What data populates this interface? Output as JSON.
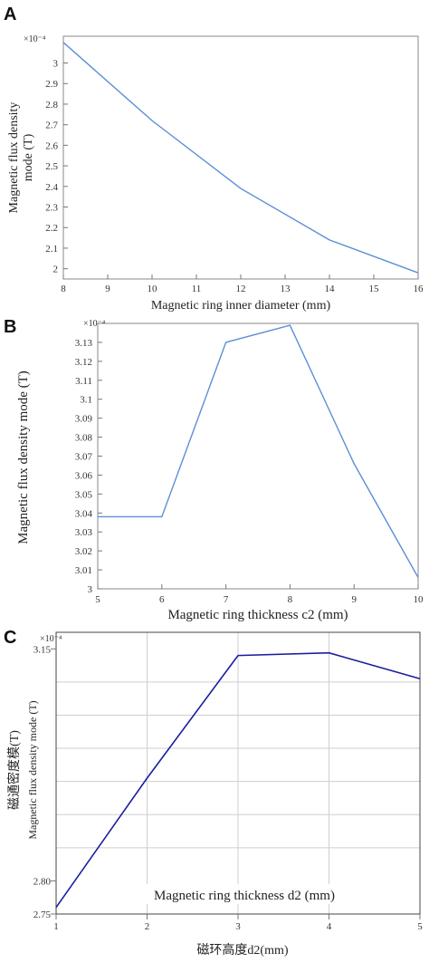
{
  "chart_data": [
    {
      "panel": "A",
      "type": "line",
      "multiplier": "×10⁻⁴",
      "xlabel": "Magnetic ring inner diameter (mm)",
      "ylabel": [
        "Magnetic flux density",
        "mode (T)"
      ],
      "xlim": [
        8,
        16
      ],
      "ylim": [
        1.95,
        3.13
      ],
      "xticks": [
        8,
        9,
        10,
        11,
        12,
        13,
        14,
        15,
        16
      ],
      "yticks": [
        2,
        2.1,
        2.2,
        2.3,
        2.4,
        2.5,
        2.6,
        2.7,
        2.8,
        2.9,
        3
      ],
      "ytick_labels": [
        "2",
        "2.1",
        "2.2",
        "2.3",
        "2.4",
        "2.5",
        "2.6",
        "2.7",
        "2.8",
        "2.9",
        "3"
      ],
      "grid": false,
      "line_color": "#5b8fd6",
      "x": [
        8,
        10,
        12,
        14,
        16
      ],
      "y": [
        3.1,
        2.72,
        2.39,
        2.14,
        1.98
      ]
    },
    {
      "panel": "B",
      "type": "line",
      "multiplier": "×10⁻⁴",
      "xlabel": "Magnetic ring thickness c2 (mm)",
      "ylabel": [
        "Magnetic flux density mode (T)"
      ],
      "xlim": [
        5,
        10
      ],
      "ylim": [
        3.0,
        3.14
      ],
      "xticks": [
        5,
        6,
        7,
        8,
        9,
        10
      ],
      "yticks": [
        3.0,
        3.01,
        3.02,
        3.03,
        3.04,
        3.05,
        3.06,
        3.07,
        3.08,
        3.09,
        3.1,
        3.11,
        3.12,
        3.13
      ],
      "ytick_labels": [
        "3",
        "3.01",
        "3.02",
        "3.03",
        "3.04",
        "3.05",
        "3.06",
        "3.07",
        "3.08",
        "3.09",
        "3.1",
        "3.11",
        "3.12",
        "3.13"
      ],
      "grid": false,
      "line_color": "#5b8fd6",
      "x": [
        5,
        6,
        7,
        8,
        9,
        10
      ],
      "y": [
        3.038,
        3.038,
        3.13,
        3.139,
        3.066,
        3.006
      ]
    },
    {
      "panel": "C",
      "type": "line",
      "multiplier": "×10⁻⁴",
      "xlabel": "Magnetic ring thickness d2 (mm)",
      "xlabel_cn": "磁环高度d2(mm)",
      "ylabel": [
        "磁通密度模(T)",
        "Magnetic flux density mode (T)"
      ],
      "xlim": [
        1,
        5
      ],
      "ylim": [
        2.75,
        3.175
      ],
      "xticks": [
        1,
        2,
        3,
        4,
        5
      ],
      "yticks": [
        2.75,
        2.8,
        3.15
      ],
      "ytick_labels": [
        "2.75",
        "2.80",
        "3.15"
      ],
      "hgrid": [
        3.1,
        3.05,
        3.0,
        2.95,
        2.9,
        2.85
      ],
      "grid": true,
      "line_color": "#1a1f9e",
      "x": [
        1,
        2,
        3,
        4,
        5
      ],
      "y": [
        2.76,
        2.955,
        3.14,
        3.144,
        3.105
      ]
    }
  ]
}
